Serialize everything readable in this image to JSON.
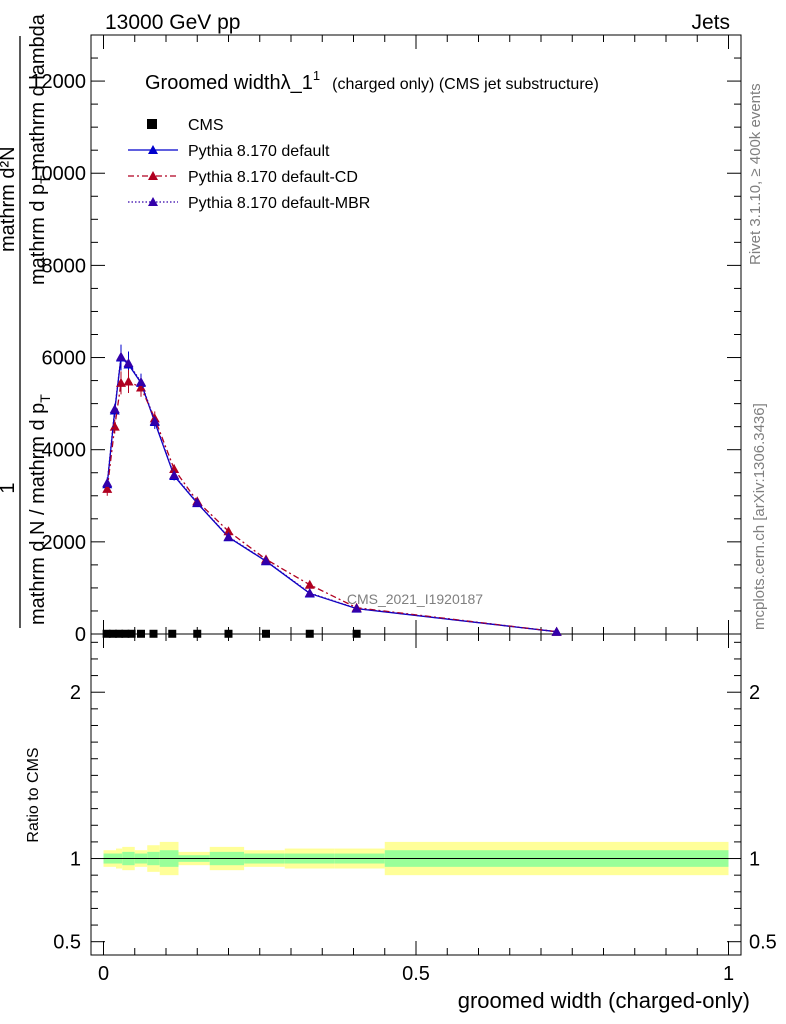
{
  "header": {
    "left": "13000 GeV pp",
    "right": "Jets"
  },
  "side": {
    "rivet": "Rivet 3.1.10, ≥ 400k events",
    "mcplots": "mcplots.cern.ch [arXiv:1306.3436]"
  },
  "watermark": "CMS_2021_I1920187",
  "chart_data": {
    "type": "line",
    "title": "Groomed widthλ_1",
    "title_sup": "1",
    "subtitle": "(charged only) (CMS jet substructure)",
    "xlabel": "groomed width (charged-only)",
    "ylabel_parts": {
      "one": "1",
      "numer": "mathrm d^{2}N",
      "numer_disp": "mathrm d²N",
      "denom": "mathrm d N / mathrm d p_T mathrm d lambda",
      "denom_disp": "mathrm d N / mathrm d p",
      "denom_sub": "T",
      "top_disp": "mathrm d p",
      "top_sub": "T",
      "top_tail": " mathrm d lambda"
    },
    "ratio_ylabel": "Ratio to CMS",
    "xlim": [
      -0.02,
      1.02
    ],
    "ylim": [
      0,
      13000
    ],
    "yticks": [
      0,
      2000,
      4000,
      6000,
      8000,
      10000,
      12000
    ],
    "ytick_labels": [
      "0",
      "2000",
      "4000",
      "6000",
      "8000",
      "10000",
      "12000"
    ],
    "xticks": [
      0,
      0.5,
      1
    ],
    "xtick_labels": [
      "0",
      "0.5",
      "1"
    ],
    "ratio_ylim": [
      0.42,
      2.35
    ],
    "ratio_yticks": [
      0.5,
      1,
      2
    ],
    "ratio_ytick_labels": [
      "0.5",
      "1",
      "2"
    ],
    "legend_position": "top-left",
    "series": [
      {
        "name": "CMS",
        "style": "markers",
        "color": "#000000",
        "x": [
          0.005,
          0.015,
          0.025,
          0.035,
          0.045,
          0.06,
          0.08,
          0.11,
          0.15,
          0.2,
          0.26,
          0.33,
          0.405
        ],
        "y": [
          5,
          5,
          5,
          5,
          5,
          5,
          5,
          5,
          5,
          5,
          5,
          5,
          5
        ]
      },
      {
        "name": "Pythia 8.170 default",
        "style": "solid",
        "color": "#0000cc",
        "x": [
          0.006,
          0.018,
          0.028,
          0.04,
          0.06,
          0.082,
          0.113,
          0.15,
          0.2,
          0.26,
          0.33,
          0.405,
          0.725
        ],
        "y": [
          3250,
          4850,
          6000,
          5850,
          5450,
          4600,
          3430,
          2840,
          2100,
          1580,
          880,
          550,
          50
        ],
        "err": [
          150,
          150,
          280,
          280,
          200,
          150,
          100,
          80,
          60,
          50,
          40,
          30,
          10
        ]
      },
      {
        "name": "Pythia 8.170 default-CD",
        "style": "dashdot",
        "color": "#b00020",
        "x": [
          0.006,
          0.018,
          0.028,
          0.04,
          0.06,
          0.082,
          0.113,
          0.15,
          0.2,
          0.26,
          0.33,
          0.405,
          0.725
        ],
        "y": [
          3150,
          4500,
          5450,
          5480,
          5350,
          4680,
          3580,
          2880,
          2230,
          1620,
          1070,
          570,
          50
        ],
        "err": [
          150,
          150,
          250,
          250,
          200,
          150,
          100,
          80,
          60,
          50,
          40,
          30,
          10
        ]
      },
      {
        "name": "Pythia 8.170 default-MBR",
        "style": "dotted",
        "color": "#3300aa",
        "x": [
          0.006,
          0.018,
          0.028,
          0.04,
          0.06,
          0.082,
          0.113,
          0.15,
          0.2,
          0.26,
          0.33,
          0.405,
          0.725
        ],
        "y": [
          3280,
          4880,
          6020,
          5880,
          5470,
          4620,
          3450,
          2850,
          2110,
          1590,
          890,
          555,
          50
        ]
      }
    ],
    "ratio_bands": {
      "edges": [
        0,
        0.02,
        0.03,
        0.05,
        0.07,
        0.09,
        0.12,
        0.17,
        0.225,
        0.29,
        0.37,
        0.45,
        1.0
      ],
      "green": [
        0.03,
        0.03,
        0.04,
        0.03,
        0.04,
        0.05,
        0.02,
        0.04,
        0.03,
        0.03,
        0.03,
        0.05
      ],
      "yellow": [
        0.05,
        0.06,
        0.07,
        0.05,
        0.08,
        0.1,
        0.04,
        0.07,
        0.05,
        0.06,
        0.06,
        0.1
      ],
      "green_color": "#99ff99",
      "yellow_color": "#ffff99"
    }
  }
}
